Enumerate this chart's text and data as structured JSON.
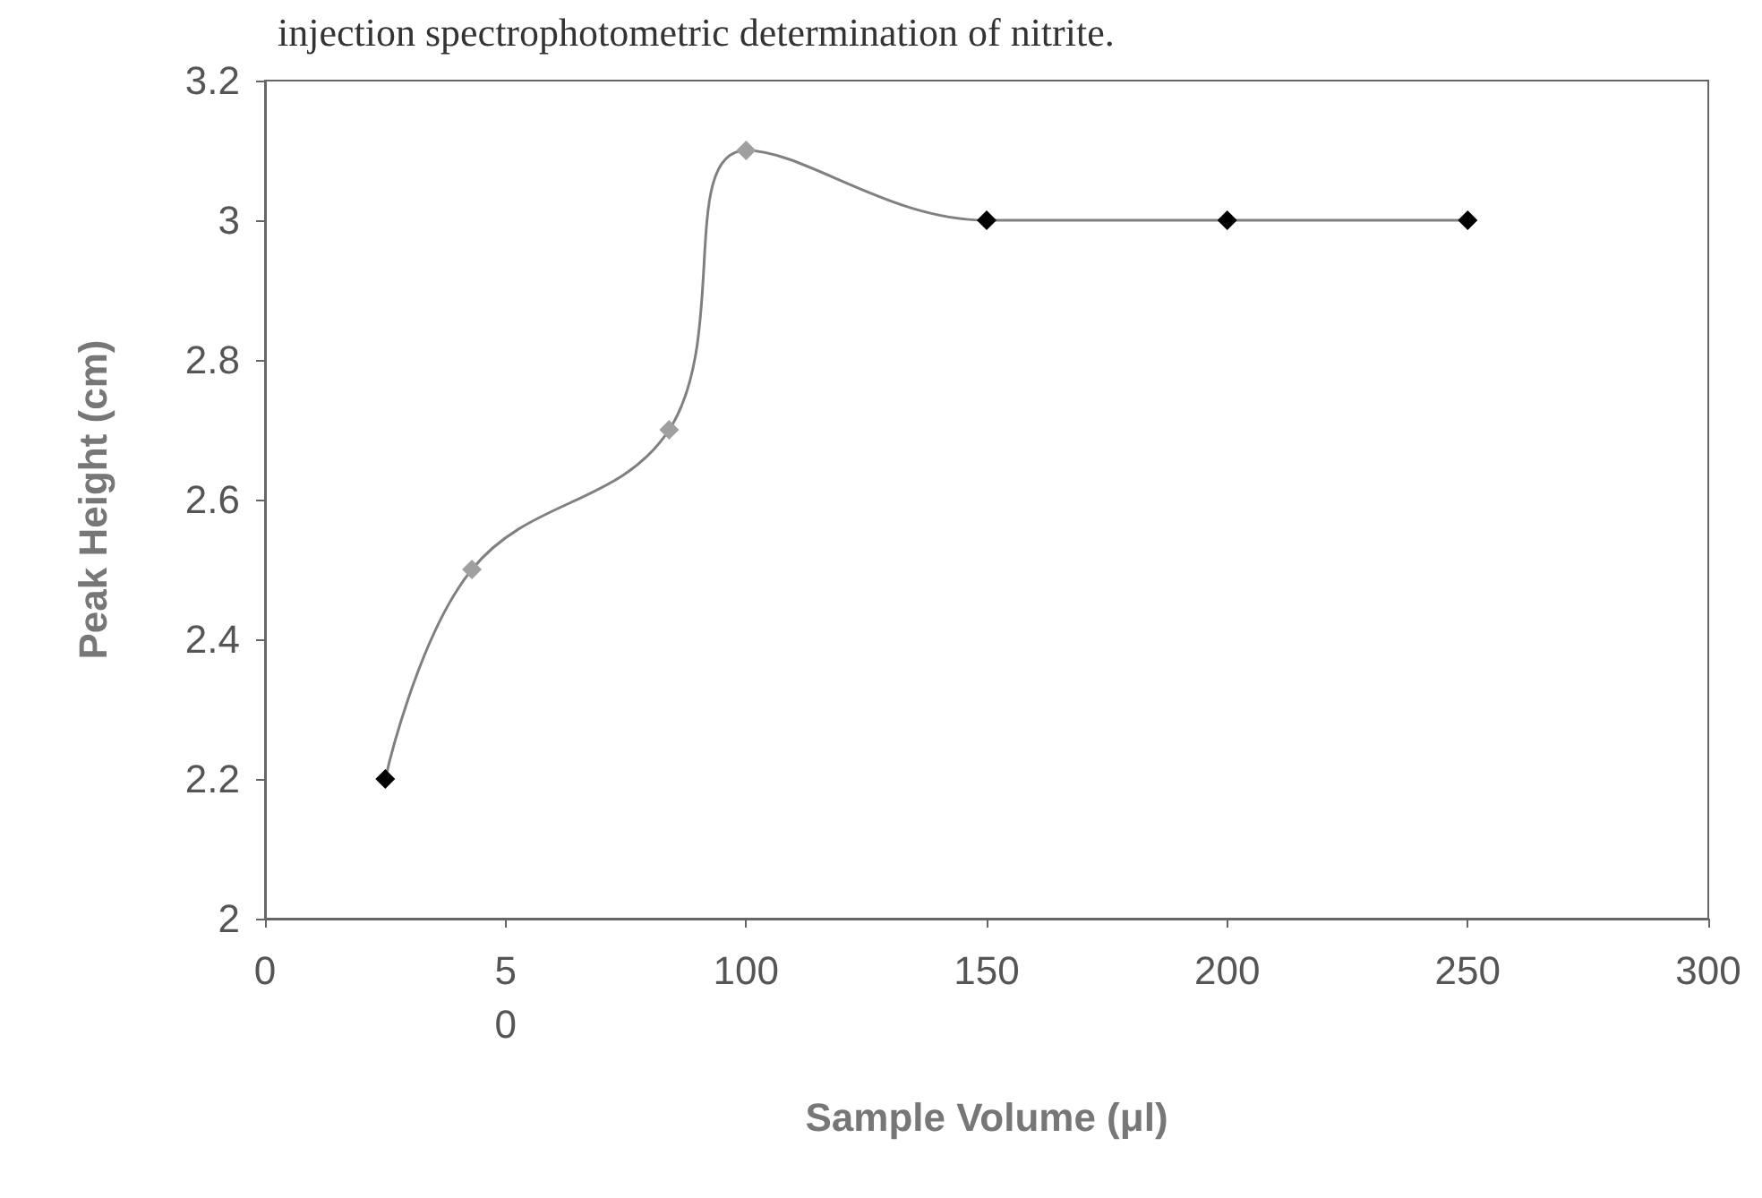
{
  "chart_data": {
    "type": "line",
    "title": "injection spectrophotometric determination of nitrite.",
    "xlabel": "Sample Volume (μl)",
    "ylabel": "Peak Height (cm)",
    "x": [
      25,
      43,
      84,
      100,
      150,
      200,
      250
    ],
    "series": [
      {
        "color": "#808080",
        "colors": [
          "#000000",
          "#a0a0a0",
          "#a0a0a0",
          "#a0a0a0",
          "#000000",
          "#000000",
          "#000000"
        ],
        "values": [
          2.2,
          2.5,
          2.7,
          3.1,
          3.0,
          3.0,
          3.0
        ]
      }
    ],
    "xlim": [
      0,
      300
    ],
    "xticks": [
      0,
      {
        "value": 50,
        "label": "5\n0"
      },
      100,
      150,
      200,
      250,
      300
    ],
    "ylim": [
      2,
      3.2
    ],
    "yticks": [
      2,
      2.2,
      2.4,
      2.6,
      2.8,
      3,
      3.2
    ],
    "grid": false,
    "marker": "diamond",
    "line_style": "solid"
  }
}
